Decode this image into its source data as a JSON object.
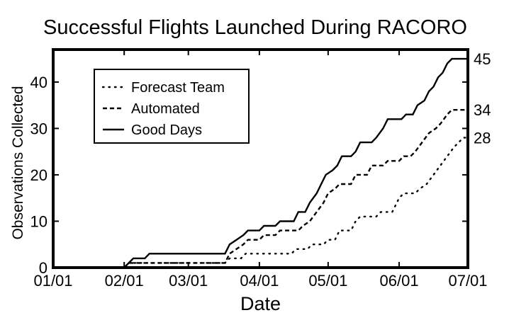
{
  "chart_data": {
    "type": "line",
    "title": "Successful Flights Launched During RACORO",
    "xlabel": "Date",
    "ylabel": "Observations Collected",
    "x_tick_labels": [
      "01/01",
      "02/01",
      "03/01",
      "04/01",
      "05/01",
      "06/01",
      "07/01"
    ],
    "y_ticks": [
      0,
      10,
      20,
      30,
      40
    ],
    "xlim": [
      "01/01",
      "07/01"
    ],
    "ylim": [
      0,
      47
    ],
    "grid": false,
    "legend_position": "top-left",
    "series": [
      {
        "name": "Forecast Team",
        "style": "dotted",
        "end_label": "28",
        "points": [
          [
            "02/01",
            0
          ],
          [
            "02/03",
            1
          ],
          [
            "03/17",
            1
          ],
          [
            "03/19",
            2
          ],
          [
            "03/24",
            2
          ],
          [
            "03/26",
            3
          ],
          [
            "04/15",
            3
          ],
          [
            "04/17",
            4
          ],
          [
            "04/22",
            4
          ],
          [
            "04/24",
            5
          ],
          [
            "04/29",
            5
          ],
          [
            "05/01",
            6
          ],
          [
            "05/04",
            6
          ],
          [
            "05/06",
            8
          ],
          [
            "05/11",
            8
          ],
          [
            "05/13",
            10
          ],
          [
            "05/15",
            11
          ],
          [
            "05/22",
            11
          ],
          [
            "05/24",
            12
          ],
          [
            "05/29",
            12
          ],
          [
            "05/31",
            14
          ],
          [
            "06/01",
            15
          ],
          [
            "06/03",
            16
          ],
          [
            "06/08",
            16
          ],
          [
            "06/10",
            17
          ],
          [
            "06/13",
            18
          ],
          [
            "06/16",
            20
          ],
          [
            "06/19",
            22
          ],
          [
            "06/22",
            24
          ],
          [
            "06/25",
            26
          ],
          [
            "06/27",
            27
          ],
          [
            "06/29",
            28
          ],
          [
            "07/01",
            28
          ]
        ]
      },
      {
        "name": "Automated",
        "style": "dashed",
        "end_label": "34",
        "points": [
          [
            "02/01",
            0
          ],
          [
            "02/03",
            1
          ],
          [
            "03/17",
            1
          ],
          [
            "03/19",
            3
          ],
          [
            "03/22",
            4
          ],
          [
            "03/25",
            5
          ],
          [
            "03/27",
            6
          ],
          [
            "04/01",
            6
          ],
          [
            "04/03",
            7
          ],
          [
            "04/08",
            7
          ],
          [
            "04/10",
            8
          ],
          [
            "04/18",
            8
          ],
          [
            "04/20",
            9
          ],
          [
            "04/23",
            10
          ],
          [
            "04/26",
            12
          ],
          [
            "04/29",
            14
          ],
          [
            "05/01",
            16
          ],
          [
            "05/04",
            17
          ],
          [
            "05/06",
            18
          ],
          [
            "05/11",
            18
          ],
          [
            "05/13",
            20
          ],
          [
            "05/18",
            20
          ],
          [
            "05/20",
            22
          ],
          [
            "05/25",
            22
          ],
          [
            "05/27",
            23
          ],
          [
            "06/01",
            23
          ],
          [
            "06/03",
            24
          ],
          [
            "06/06",
            24
          ],
          [
            "06/08",
            25
          ],
          [
            "06/11",
            27
          ],
          [
            "06/14",
            29
          ],
          [
            "06/17",
            30
          ],
          [
            "06/19",
            31
          ],
          [
            "06/22",
            33
          ],
          [
            "06/24",
            34
          ],
          [
            "07/01",
            34
          ]
        ]
      },
      {
        "name": "Good Days",
        "style": "solid",
        "end_label": "45",
        "points": [
          [
            "02/01",
            0
          ],
          [
            "02/03",
            1
          ],
          [
            "02/05",
            2
          ],
          [
            "02/10",
            2
          ],
          [
            "02/12",
            3
          ],
          [
            "03/17",
            3
          ],
          [
            "03/19",
            5
          ],
          [
            "03/22",
            6
          ],
          [
            "03/25",
            7
          ],
          [
            "03/27",
            8
          ],
          [
            "04/01",
            8
          ],
          [
            "04/03",
            9
          ],
          [
            "04/08",
            9
          ],
          [
            "04/10",
            10
          ],
          [
            "04/16",
            10
          ],
          [
            "04/18",
            12
          ],
          [
            "04/21",
            12
          ],
          [
            "04/23",
            14
          ],
          [
            "04/26",
            16
          ],
          [
            "04/28",
            18
          ],
          [
            "04/30",
            20
          ],
          [
            "05/03",
            21
          ],
          [
            "05/05",
            22
          ],
          [
            "05/07",
            24
          ],
          [
            "05/11",
            24
          ],
          [
            "05/13",
            25
          ],
          [
            "05/15",
            27
          ],
          [
            "05/20",
            27
          ],
          [
            "05/22",
            28
          ],
          [
            "05/25",
            30
          ],
          [
            "05/27",
            32
          ],
          [
            "06/02",
            32
          ],
          [
            "06/04",
            33
          ],
          [
            "06/07",
            33
          ],
          [
            "06/09",
            35
          ],
          [
            "06/12",
            36
          ],
          [
            "06/14",
            38
          ],
          [
            "06/16",
            39
          ],
          [
            "06/18",
            41
          ],
          [
            "06/20",
            42
          ],
          [
            "06/22",
            44
          ],
          [
            "06/24",
            45
          ],
          [
            "07/01",
            45
          ]
        ]
      }
    ]
  }
}
